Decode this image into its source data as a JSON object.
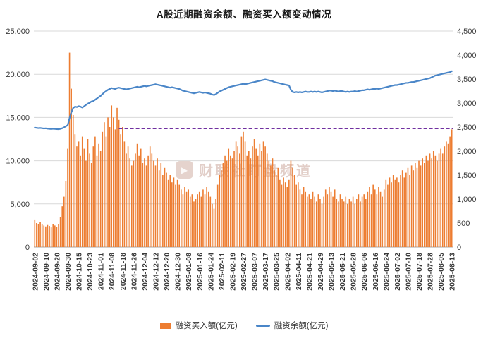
{
  "title": "A股近期融资余额、融资买入额变动情况",
  "watermark": {
    "text": "财联社盯盘频道",
    "icon": "play-icon"
  },
  "legend": [
    {
      "label": "融资买入额(亿元)",
      "type": "bar",
      "color": "#ED7D31"
    },
    {
      "label": "融资余额(亿元)",
      "type": "line",
      "color": "#4A86C8"
    }
  ],
  "colors": {
    "bar": "#ED7D31",
    "line": "#4A86C8",
    "reference": "#7030A0",
    "grid": "#D9D9D9",
    "axis": "#A6A6A6",
    "tick_text": "#3A3A3A"
  },
  "chart_data": {
    "type": "bar",
    "subtype": "combo-bar-line-dual-axis",
    "title": "A股近期融资余额、融资买入额变动情况",
    "grid": true,
    "legend_position": "bottom",
    "x_tick_labels": [
      "2024-09-02",
      "2024-09-10",
      "2024-09-20",
      "2024-09-30",
      "2024-10-15",
      "2024-10-23",
      "2024-11-01",
      "2024-11-08",
      "2024-11-18",
      "2024-11-26",
      "2024-12-04",
      "2024-12-12",
      "2024-12-20",
      "2024-12-30",
      "2025-01-08",
      "2025-01-16",
      "2025-01-24",
      "2025-02-11",
      "2025-02-19",
      "2025-02-27",
      "2025-03-07",
      "2025-03-17",
      "2025-03-25",
      "2025-04-02",
      "2025-04-11",
      "2025-04-21",
      "2025-04-29",
      "2025-05-13",
      "2025-05-21",
      "2025-05-28",
      "2025-06-06",
      "2025-06-16",
      "2025-06-24",
      "2025-07-02",
      "2025-07-10",
      "2025-07-18",
      "2025-07-28",
      "2025-08-05",
      "2025-08-13"
    ],
    "tick_every": 6,
    "left_axis": {
      "title": "融资余额(亿元)",
      "min": 0,
      "max": 25000,
      "step": 5000
    },
    "right_axis": {
      "title": "融资买入额(亿元)",
      "min": 0,
      "max": 4500,
      "step": 500
    },
    "reference_line": {
      "axis": "right",
      "value": 2466,
      "start_index": 46,
      "style": "dashed",
      "color": "#7030A0"
    },
    "series": [
      {
        "name": "融资买入额(亿元)",
        "type": "bar",
        "axis": "right",
        "color": "#ED7D31",
        "values": [
          560,
          500,
          480,
          520,
          470,
          450,
          430,
          460,
          440,
          410,
          480,
          450,
          420,
          480,
          620,
          850,
          1050,
          1380,
          2050,
          4050,
          3300,
          2750,
          2350,
          2100,
          2200,
          1900,
          2300,
          2050,
          1800,
          2250,
          1950,
          1750,
          2100,
          2300,
          1900,
          2150,
          2000,
          2400,
          2600,
          2300,
          2700,
          2500,
          2950,
          2700,
          2450,
          2900,
          2650,
          2350,
          2500,
          2200,
          1950,
          2100,
          1850,
          1700,
          1800,
          1950,
          2150,
          1900,
          2050,
          1750,
          1850,
          1700,
          1900,
          2100,
          1950,
          1800,
          1700,
          1850,
          1600,
          1750,
          1500,
          1650,
          1550,
          1400,
          1500,
          1350,
          1450,
          1300,
          1400,
          1300,
          1200,
          1100,
          1250,
          1150,
          1200,
          1050,
          1100,
          950,
          1000,
          1100,
          1150,
          1050,
          1200,
          1100,
          1250,
          1150,
          1050,
          900,
          800,
          1000,
          1300,
          1500,
          1600,
          1750,
          1900,
          1800,
          2050,
          1900,
          1850,
          2000,
          2200,
          2100,
          1950,
          2300,
          2400,
          2200,
          1900,
          2000,
          1850,
          2100,
          2250,
          2050,
          1900,
          2150,
          2000,
          2200,
          2100,
          1950,
          1800,
          1700,
          1850,
          1600,
          1500,
          1650,
          1400,
          1300,
          1450,
          1350,
          1250,
          1400,
          1800,
          1650,
          1500,
          1300,
          1350,
          1200,
          1100,
          1250,
          1150,
          1050,
          1100,
          1000,
          1150,
          1050,
          950,
          1100,
          1000,
          900,
          1050,
          1200,
          1100,
          1250,
          1150,
          1050,
          1200,
          1000,
          950,
          1100,
          1000,
          950,
          1050,
          900,
          1000,
          950,
          1050,
          900,
          1000,
          1100,
          950,
          1050,
          1100,
          1000,
          1150,
          1250,
          1100,
          1300,
          1200,
          1100,
          1250,
          1150,
          1050,
          1200,
          1400,
          1300,
          1450,
          1350,
          1500,
          1400,
          1450,
          1350,
          1500,
          1600,
          1450,
          1550,
          1650,
          1500,
          1700,
          1600,
          1750,
          1650,
          1800,
          1700,
          1850,
          1750,
          1900,
          1800,
          1950,
          1850,
          2000,
          1900,
          1800,
          1950,
          2050,
          1950,
          2100,
          2200,
          2150,
          2300,
          2450
        ]
      },
      {
        "name": "融资余额(亿元)",
        "type": "line",
        "axis": "left",
        "color": "#4A86C8",
        "values": [
          13820,
          13790,
          13760,
          13780,
          13750,
          13720,
          13740,
          13700,
          13680,
          13660,
          13690,
          13670,
          13650,
          13640,
          13680,
          13750,
          13850,
          13980,
          14100,
          14900,
          15600,
          16100,
          16250,
          16200,
          16300,
          16250,
          16150,
          16300,
          16450,
          16600,
          16700,
          16850,
          16900,
          17050,
          17200,
          17350,
          17500,
          17700,
          17900,
          18050,
          18200,
          18300,
          18400,
          18350,
          18300,
          18400,
          18450,
          18400,
          18350,
          18300,
          18250,
          18300,
          18350,
          18400,
          18450,
          18500,
          18550,
          18500,
          18550,
          18600,
          18650,
          18600,
          18650,
          18700,
          18750,
          18800,
          18850,
          18800,
          18750,
          18700,
          18650,
          18600,
          18550,
          18500,
          18450,
          18500,
          18450,
          18400,
          18350,
          18300,
          18200,
          18100,
          18050,
          18000,
          17950,
          17900,
          17850,
          17800,
          17850,
          17900,
          17950,
          17900,
          17850,
          17900,
          17850,
          17800,
          17750,
          17650,
          17600,
          17700,
          17850,
          18000,
          18100,
          18200,
          18300,
          18400,
          18500,
          18550,
          18600,
          18650,
          18700,
          18750,
          18800,
          18850,
          18900,
          18850,
          18900,
          18950,
          19000,
          19050,
          19100,
          19150,
          19200,
          19250,
          19300,
          19350,
          19400,
          19350,
          19300,
          19250,
          19200,
          19100,
          19050,
          19000,
          18950,
          18900,
          18850,
          18800,
          18750,
          18700,
          18200,
          17950,
          17900,
          17950,
          17900,
          17950,
          17900,
          17950,
          18000,
          17950,
          17950,
          18000,
          17950,
          18000,
          17950,
          18000,
          17950,
          17900,
          17950,
          18000,
          18050,
          18100,
          18100,
          18050,
          18100,
          18050,
          18000,
          18050,
          18050,
          18000,
          17950,
          18000,
          17950,
          18000,
          18000,
          18050,
          18000,
          18050,
          18100,
          18150,
          18150,
          18200,
          18250,
          18200,
          18250,
          18300,
          18300,
          18350,
          18300,
          18350,
          18400,
          18450,
          18500,
          18550,
          18600,
          18650,
          18700,
          18750,
          18750,
          18800,
          18850,
          18900,
          18950,
          19000,
          19000,
          19050,
          19100,
          19100,
          19150,
          19200,
          19250,
          19300,
          19350,
          19400,
          19450,
          19500,
          19550,
          19650,
          19750,
          19850,
          19900,
          19950,
          20000,
          20050,
          20100,
          20150,
          20200,
          20250,
          20350
        ]
      }
    ]
  }
}
